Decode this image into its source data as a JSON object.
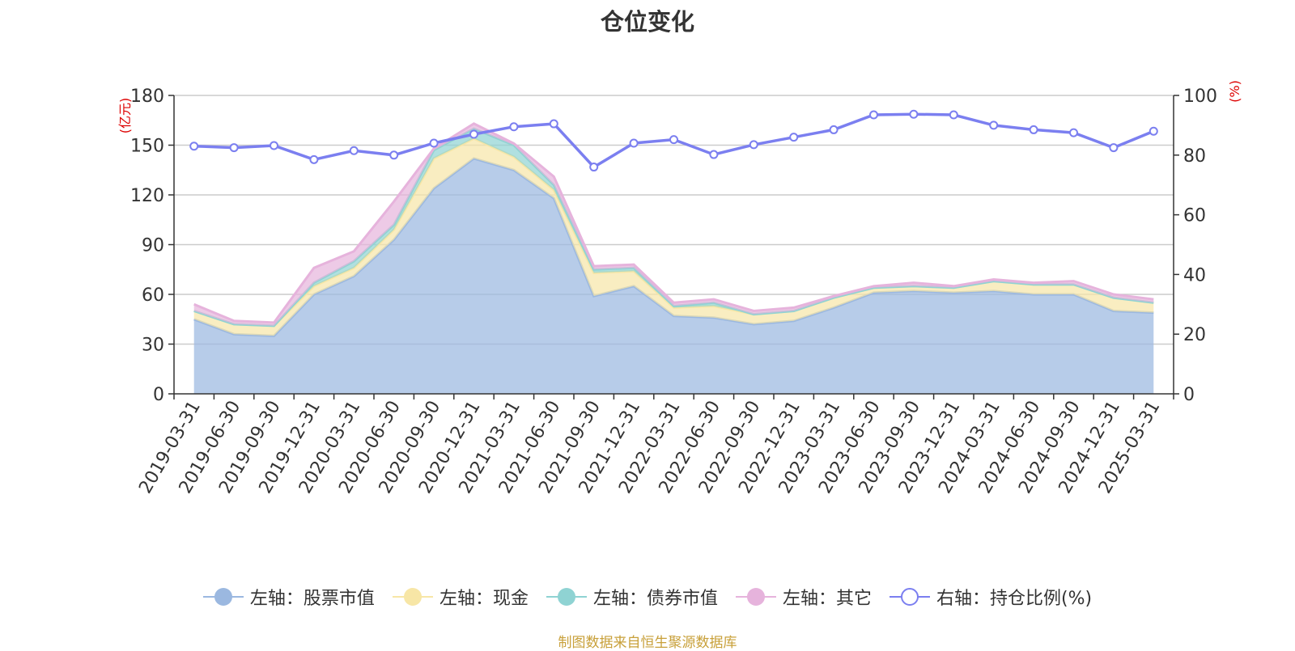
{
  "title": "仓位变化",
  "source_note": "制图数据来自恒生聚源数据库",
  "y_left_unit": "(亿元)",
  "y_right_unit": "(%)",
  "legend": [
    {
      "label": "左轴：股票市值",
      "color": "#9bb8e0",
      "icon": "filled-circle"
    },
    {
      "label": "左轴：现金",
      "color": "#f7e6a6",
      "icon": "filled-circle"
    },
    {
      "label": "左轴：债券市值",
      "color": "#8fd3d3",
      "icon": "filled-circle"
    },
    {
      "label": "左轴：其它",
      "color": "#e6b3dc",
      "icon": "filled-circle"
    },
    {
      "label": "右轴：持仓比例(%)",
      "color": "#7b7ff0",
      "icon": "hollow-circle"
    }
  ],
  "chart_data": {
    "type": "area",
    "stacked": true,
    "title": "仓位变化",
    "categories": [
      "2019-03-31",
      "2019-06-30",
      "2019-09-30",
      "2019-12-31",
      "2020-03-31",
      "2020-06-30",
      "2020-09-30",
      "2020-12-31",
      "2021-03-31",
      "2021-06-30",
      "2021-09-30",
      "2021-12-31",
      "2022-03-31",
      "2022-06-30",
      "2022-09-30",
      "2022-12-31",
      "2023-03-31",
      "2023-06-30",
      "2023-09-30",
      "2023-12-31",
      "2024-03-31",
      "2024-06-30",
      "2024-09-30",
      "2024-12-31",
      "2025-03-31"
    ],
    "y_left": {
      "label": "(亿元)",
      "range": [
        0,
        180
      ],
      "ticks": [
        0,
        30,
        60,
        90,
        120,
        150,
        180
      ]
    },
    "y_right": {
      "label": "(%)",
      "range": [
        0,
        100
      ],
      "ticks": [
        0,
        20,
        40,
        60,
        80,
        100
      ]
    },
    "grid": true,
    "legend_position": "bottom",
    "series": [
      {
        "name": "左轴：股票市值",
        "axis": "left",
        "color": "#9bb8e0",
        "values": [
          45,
          36,
          35,
          60,
          71,
          93,
          124,
          142,
          135,
          118,
          59,
          65,
          47,
          46,
          42,
          44,
          52,
          61,
          62,
          61,
          62,
          60,
          60,
          50,
          49
        ]
      },
      {
        "name": "左轴：现金",
        "axis": "left",
        "color": "#f7e6a6",
        "values": [
          5,
          6,
          6,
          5,
          5,
          6,
          18,
          12,
          8,
          5,
          14,
          9,
          5,
          7,
          6,
          6,
          6,
          3,
          3,
          3,
          6,
          6,
          6,
          8,
          6
        ]
      },
      {
        "name": "左轴：债券市值",
        "axis": "left",
        "color": "#8fd3d3",
        "values": [
          0,
          0,
          0,
          2,
          4,
          3,
          5,
          6,
          7,
          3,
          2,
          2,
          1,
          2,
          0,
          0,
          0,
          0,
          0,
          0,
          0,
          0,
          0,
          0,
          0
        ]
      },
      {
        "name": "左轴：其它",
        "axis": "left",
        "color": "#e6b3dc",
        "values": [
          4,
          2,
          2,
          9,
          6,
          14,
          1,
          3,
          1,
          5,
          2,
          2,
          2,
          2,
          2,
          2,
          1,
          1,
          2,
          1,
          1,
          1,
          2,
          2,
          2
        ]
      },
      {
        "name": "右轴：持仓比例(%)",
        "axis": "right",
        "type": "line",
        "color": "#7b7ff0",
        "values": [
          83,
          82.5,
          83.2,
          78.5,
          81.5,
          80,
          84,
          87,
          89.5,
          90.5,
          76,
          84,
          85.2,
          80.2,
          83.5,
          86,
          88.5,
          93.5,
          93.7,
          93.5,
          90,
          88.5,
          87.5,
          82.5,
          88
        ]
      }
    ]
  }
}
